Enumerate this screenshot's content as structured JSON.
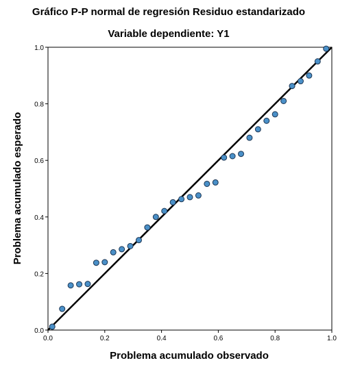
{
  "chart_data": {
    "type": "scatter",
    "title": "Gráfico P-P normal de regresión Residuo estandarizado",
    "subtitle": "Variable dependiente: Y1",
    "xlabel": "Problema acumulado observado",
    "ylabel": "Problema acumulado esperado",
    "xlim": [
      0.0,
      1.0
    ],
    "ylim": [
      0.0,
      1.0
    ],
    "xticks": [
      "0.0",
      "0.2",
      "0.4",
      "0.6",
      "0.8",
      "1.0"
    ],
    "yticks": [
      "0.0",
      "0.2",
      "0.4",
      "0.6",
      "0.8",
      "1.0"
    ],
    "grid": false,
    "reference_line": {
      "from": [
        0.0,
        0.0
      ],
      "to": [
        1.0,
        1.0
      ],
      "color": "#000000"
    },
    "marker_color": "#4a90c8",
    "marker_edge_color": "#1c3552",
    "points": [
      [
        0.015,
        0.012
      ],
      [
        0.05,
        0.075
      ],
      [
        0.08,
        0.158
      ],
      [
        0.11,
        0.162
      ],
      [
        0.14,
        0.163
      ],
      [
        0.17,
        0.238
      ],
      [
        0.2,
        0.24
      ],
      [
        0.23,
        0.275
      ],
      [
        0.26,
        0.286
      ],
      [
        0.29,
        0.297
      ],
      [
        0.32,
        0.318
      ],
      [
        0.35,
        0.363
      ],
      [
        0.38,
        0.4
      ],
      [
        0.41,
        0.421
      ],
      [
        0.44,
        0.452
      ],
      [
        0.47,
        0.463
      ],
      [
        0.5,
        0.47
      ],
      [
        0.53,
        0.476
      ],
      [
        0.56,
        0.517
      ],
      [
        0.59,
        0.522
      ],
      [
        0.62,
        0.61
      ],
      [
        0.65,
        0.615
      ],
      [
        0.68,
        0.623
      ],
      [
        0.71,
        0.68
      ],
      [
        0.74,
        0.71
      ],
      [
        0.77,
        0.74
      ],
      [
        0.8,
        0.763
      ],
      [
        0.83,
        0.81
      ],
      [
        0.86,
        0.863
      ],
      [
        0.89,
        0.88
      ],
      [
        0.92,
        0.9
      ],
      [
        0.95,
        0.95
      ],
      [
        0.98,
        0.995
      ]
    ]
  }
}
